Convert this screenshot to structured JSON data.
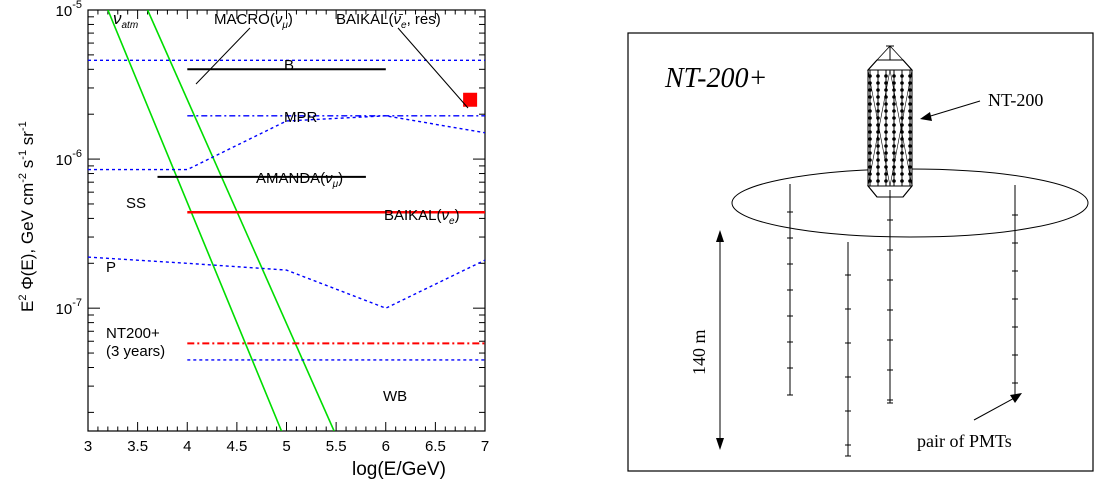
{
  "chart_data": {
    "type": "line",
    "xlabel": "log(E/GeV)",
    "ylabel": "E² Φ(E), GeV cm⁻² s⁻¹ sr⁻¹",
    "xlim": [
      3,
      7
    ],
    "ylim": [
      1.5e-08,
      1e-05
    ],
    "yscale": "log",
    "x_ticks": [
      "3",
      "3.5",
      "4",
      "4.5",
      "5",
      "5.5",
      "6",
      "6.5",
      "7"
    ],
    "y_ticks": [
      {
        "value": 1e-07,
        "base": "10",
        "exp": "-7"
      },
      {
        "value": 1e-06,
        "base": "10",
        "exp": "-6"
      },
      {
        "value": 1e-05,
        "base": "10",
        "exp": "-5"
      }
    ],
    "series": [
      {
        "name": "ν_atm",
        "style": "green-solid",
        "x": [
          3.2,
          4.95
        ],
        "y": [
          1e-05,
          1.5e-08
        ]
      },
      {
        "name": "",
        "style": "green-solid",
        "x": [
          3.6,
          5.48
        ],
        "y": [
          1e-05,
          1.5e-08
        ]
      },
      {
        "name": "B",
        "style": "blue-dotted",
        "x": [
          3,
          7
        ],
        "y": [
          4.6e-06,
          4.6e-06
        ]
      },
      {
        "name": "MPR",
        "style": "blue-dashdot",
        "x": [
          4,
          7
        ],
        "y": [
          1.95e-06,
          1.95e-06
        ]
      },
      {
        "name": "MPR",
        "style": "blue-dotted",
        "x": [
          3,
          4,
          5,
          6,
          7
        ],
        "y": [
          8.5e-07,
          8.5e-07,
          1.8e-06,
          1.95e-06,
          1.5e-06
        ]
      },
      {
        "name": "MACRO(ν_μ)",
        "style": "black-solid",
        "x": [
          4,
          6
        ],
        "y": [
          4e-06,
          4e-06
        ]
      },
      {
        "name": "AMANDA(ν_μ)",
        "style": "black-solid",
        "x": [
          3.7,
          5.8
        ],
        "y": [
          7.6e-07,
          7.6e-07
        ]
      },
      {
        "name": "BAIKAL(ν_e)",
        "style": "red-solid",
        "x": [
          4,
          7
        ],
        "y": [
          4.4e-07,
          4.4e-07
        ]
      },
      {
        "name": "P",
        "style": "blue-dotted",
        "x": [
          3,
          4,
          5,
          6,
          7
        ],
        "y": [
          2.2e-07,
          2e-07,
          1.8e-07,
          1e-07,
          2.1e-07
        ]
      },
      {
        "name": "NT200+ (3 years)",
        "style": "red-dashdot",
        "x": [
          4,
          7
        ],
        "y": [
          5.8e-08,
          5.8e-08
        ]
      },
      {
        "name": "WB",
        "style": "blue-dotted",
        "x": [
          4,
          7
        ],
        "y": [
          4.5e-08,
          4.5e-08
        ]
      }
    ],
    "points": [
      {
        "name": "BAIKAL(ν̄_e, res)",
        "x": 6.85,
        "y": 2.5e-06,
        "color": "#ff0000",
        "marker": "square"
      }
    ],
    "annotations": {
      "nu_atm": {
        "base": "ν",
        "sub": "atm"
      },
      "macro": {
        "pre": "MACRO(",
        "nu": "ν",
        "sub": "μ",
        "post": ")"
      },
      "baikal_res": {
        "pre": "BAIKAL(",
        "nu": "ν̄",
        "sub": "e",
        "post": ", res)"
      },
      "b": "B",
      "mpr": "MPR",
      "amanda": {
        "pre": "AMANDA(",
        "nu": "ν",
        "sub": "μ",
        "post": ")"
      },
      "ss": "SS",
      "baikal_e": {
        "pre": "BAIKAL(",
        "nu": "ν",
        "sub": "e",
        "post": ")"
      },
      "p": "P",
      "nt200plus_line1": "NT200+",
      "nt200plus_line2": "(3 years)",
      "wb": "WB"
    },
    "ylabel_parts": {
      "e": "E",
      "sup2": "2",
      "phi": " Φ(E), GeV cm",
      "sup_m2": "-2",
      "s": " s",
      "sup_m1a": "-1",
      "sr": " sr",
      "sup_m1b": "-1"
    },
    "colors": {
      "green": "#00dd00",
      "blue": "#0000ff",
      "red": "#ff0000",
      "black": "#000000"
    }
  },
  "diagram": {
    "title": "NT-200+",
    "labels": {
      "nt200": "NT-200",
      "height": "140 m",
      "pmts": "pair of PMTs"
    }
  }
}
